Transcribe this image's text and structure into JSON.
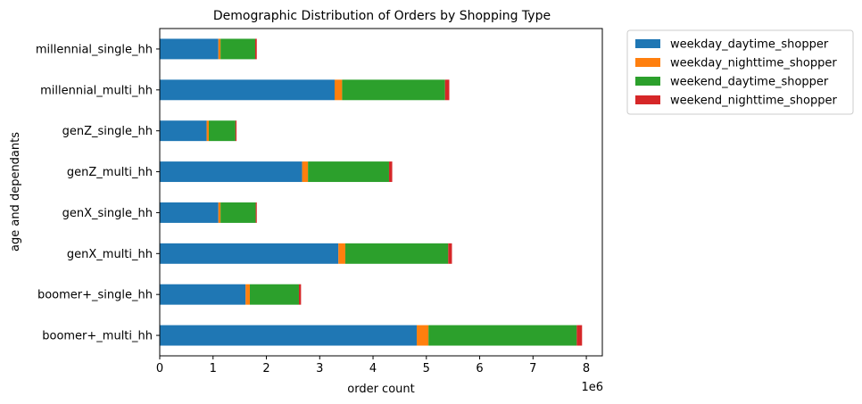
{
  "chart_data": {
    "type": "bar",
    "orientation": "horizontal",
    "stacked": true,
    "title": "Demographic Distribution of Orders by Shopping Type",
    "xlabel": "order count",
    "ylabel": "age and dependants",
    "x_offset_label": "1e6",
    "xlim": [
      0,
      8.3
    ],
    "x_ticks": [
      0,
      1,
      2,
      3,
      4,
      5,
      6,
      7,
      8
    ],
    "grid": false,
    "legend_position": "outside top-right",
    "categories": [
      "boomer+_multi_hh",
      "boomer+_single_hh",
      "genX_multi_hh",
      "genX_single_hh",
      "genZ_multi_hh",
      "genZ_single_hh",
      "millennial_multi_hh",
      "millennial_single_hh"
    ],
    "series": [
      {
        "name": "weekday_daytime_shopper",
        "color": "#1f77b4",
        "values": [
          4.82,
          1.61,
          3.35,
          1.1,
          2.67,
          0.88,
          3.28,
          1.1
        ]
      },
      {
        "name": "weekday_nighttime_shopper",
        "color": "#ff7f0e",
        "values": [
          0.22,
          0.08,
          0.13,
          0.04,
          0.11,
          0.04,
          0.14,
          0.04
        ]
      },
      {
        "name": "weekend_daytime_shopper",
        "color": "#2ca02c",
        "values": [
          2.78,
          0.92,
          1.93,
          0.66,
          1.52,
          0.5,
          1.93,
          0.65
        ]
      },
      {
        "name": "weekend_nighttime_shopper",
        "color": "#d62728",
        "values": [
          0.1,
          0.04,
          0.07,
          0.02,
          0.06,
          0.02,
          0.08,
          0.03
        ]
      }
    ]
  }
}
